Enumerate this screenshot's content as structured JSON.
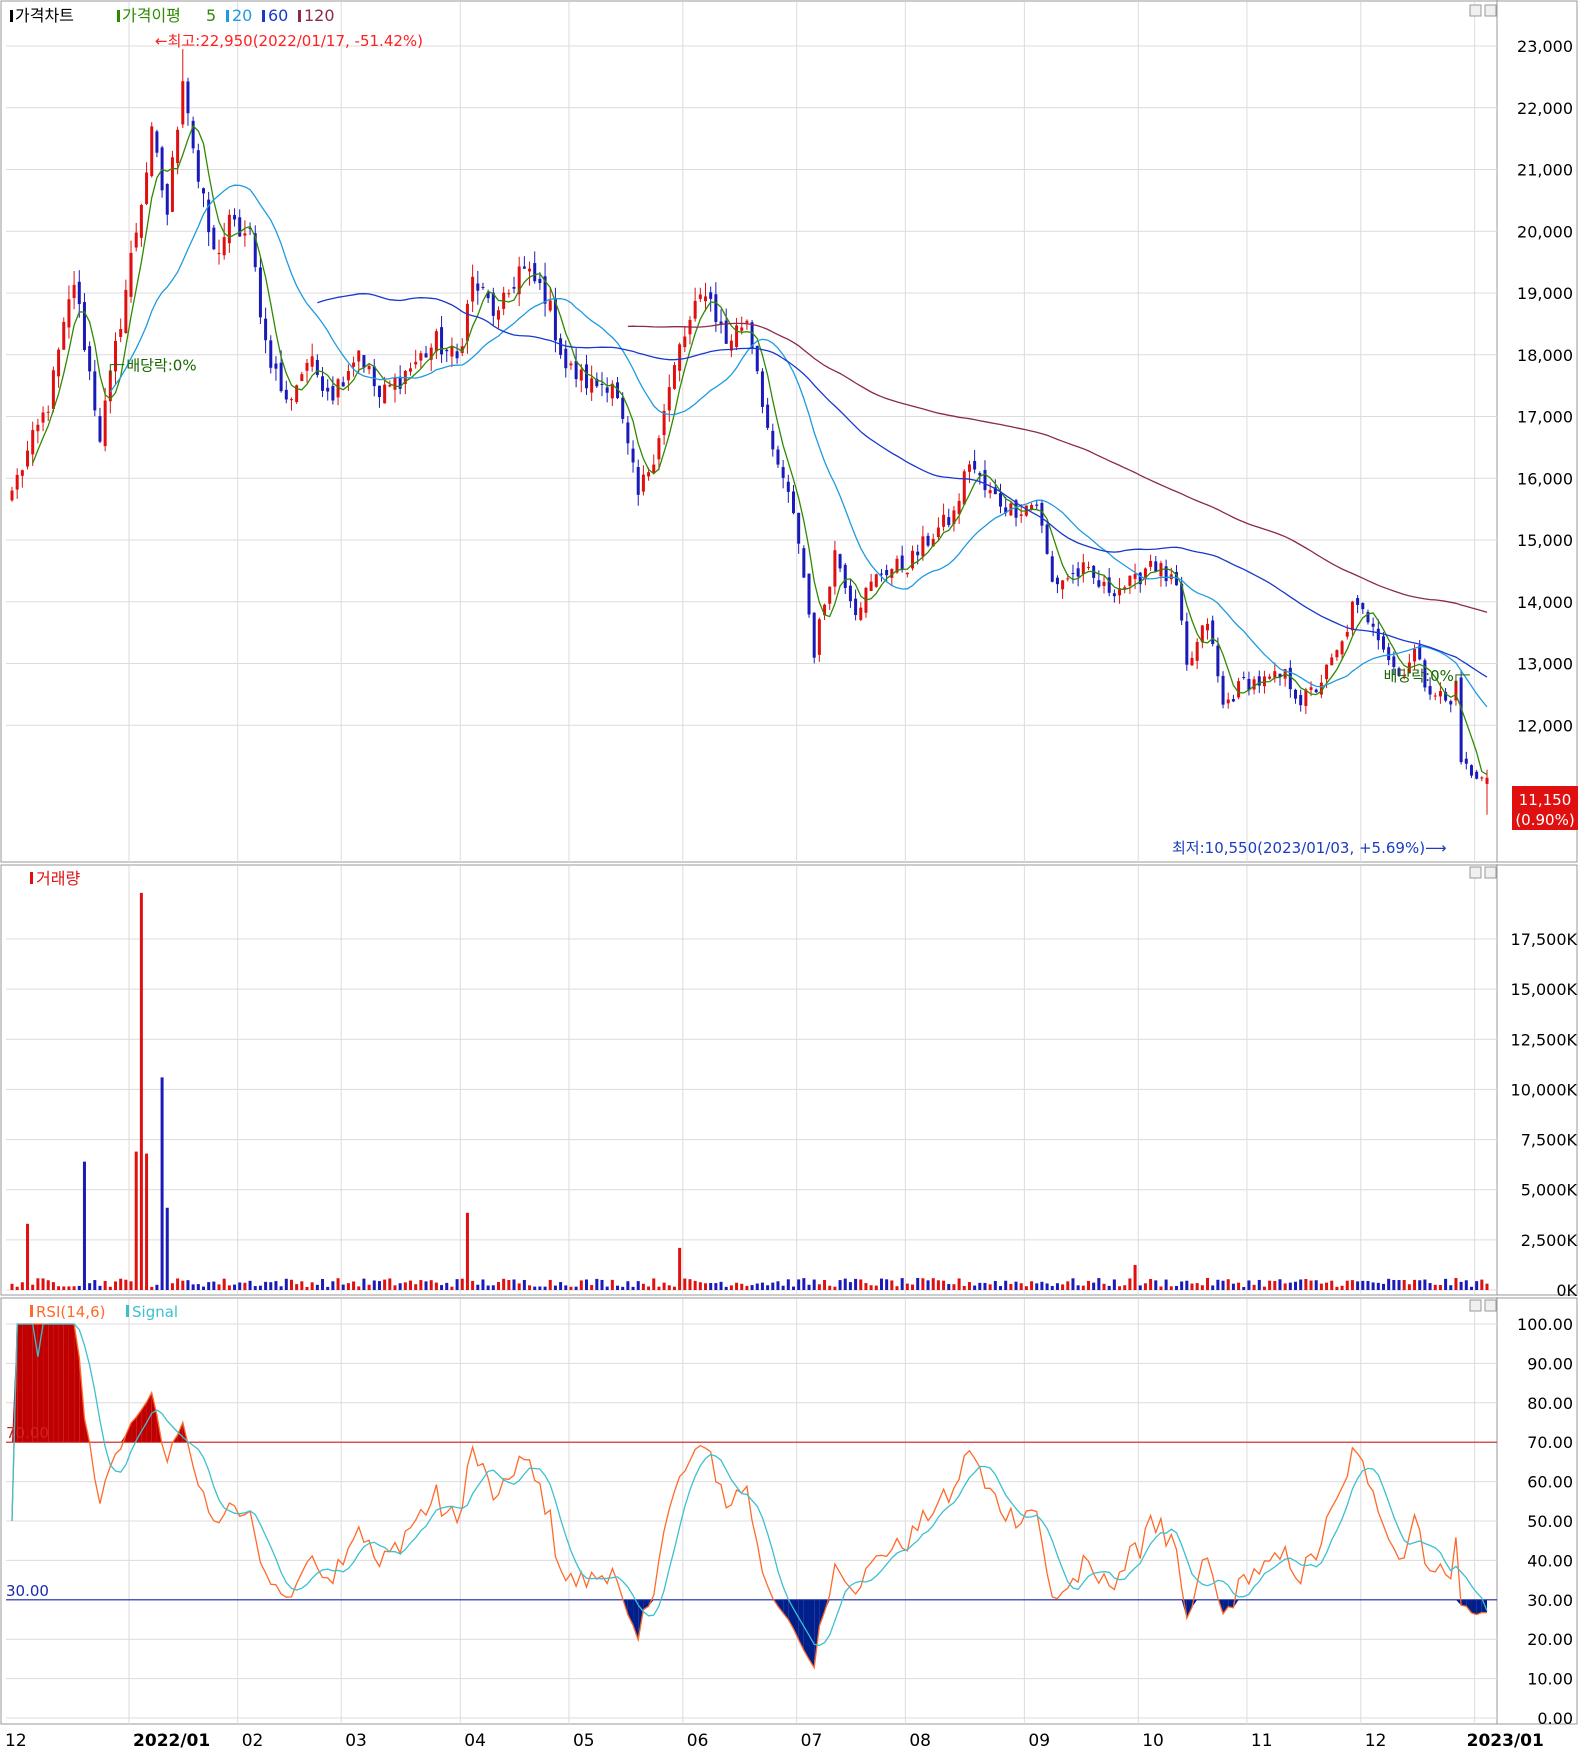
{
  "colors": {
    "up": "#e01010",
    "down": "#1a1ab8",
    "ma5": "#2e8b00",
    "ma20": "#1e9be0",
    "ma60": "#1838d0",
    "ma120": "#8b2a4a",
    "rsi": "#ff6a2a",
    "signal": "#3cc0d0",
    "grid": "#dcdcdc",
    "note": "#ff2020",
    "annotation": "#1a6600",
    "low_note": "#1a3cc0",
    "price_tag_bg": "#e01010"
  },
  "chart_data": [
    {
      "type": "candlestick",
      "panel": "price",
      "legend": {
        "main": "가격차트",
        "ma_title": "가격이평",
        "ma5": "5",
        "ma20": "20",
        "ma60": "60",
        "ma120": "120"
      },
      "y_ticks": [
        "23,000",
        "22,000",
        "21,000",
        "20,000",
        "19,000",
        "18,000",
        "17,000",
        "16,000",
        "15,000",
        "14,000",
        "13,000",
        "12,000"
      ],
      "ylim": [
        10300,
        23500
      ],
      "x_tick_labels": [
        "12",
        "2022/01",
        "02",
        "03",
        "04",
        "05",
        "06",
        "07",
        "08",
        "09",
        "10",
        "11",
        "12",
        "2023/01"
      ],
      "high_note": "←최고:22,950(2022/01/17, -51.42%)",
      "low_note": "최저:10,550(2023/01/03, +5.69%)⟶",
      "dividend_notes": [
        "배당락:0%",
        "배당락:0%"
      ],
      "last_price": "11,150",
      "last_change": "(0.90%)",
      "anchors": [
        [
          "2021-12-01",
          15800
        ],
        [
          "2021-12-10",
          17200
        ],
        [
          "2021-12-17",
          19200
        ],
        [
          "2021-12-24",
          16700
        ],
        [
          "2021-12-28",
          17600
        ],
        [
          "2022-01-07",
          21500
        ],
        [
          "2022-01-12",
          20300
        ],
        [
          "2022-01-14",
          21800
        ],
        [
          "2022-01-17",
          22600
        ],
        [
          "2022-01-20",
          20800
        ],
        [
          "2022-01-25",
          19600
        ],
        [
          "2022-01-28",
          20100
        ],
        [
          "2022-02-03",
          19900
        ],
        [
          "2022-02-08",
          18200
        ],
        [
          "2022-02-14",
          17200
        ],
        [
          "2022-02-18",
          17900
        ],
        [
          "2022-02-25",
          17400
        ],
        [
          "2022-03-04",
          18100
        ],
        [
          "2022-03-10",
          17300
        ],
        [
          "2022-03-18",
          17800
        ],
        [
          "2022-03-25",
          18200
        ],
        [
          "2022-03-31",
          17900
        ],
        [
          "2022-04-05",
          19200
        ],
        [
          "2022-04-12",
          18600
        ],
        [
          "2022-04-18",
          19400
        ],
        [
          "2022-04-25",
          19000
        ],
        [
          "2022-04-29",
          17800
        ],
        [
          "2022-05-06",
          17500
        ],
        [
          "2022-05-12",
          17600
        ],
        [
          "2022-05-19",
          15700
        ],
        [
          "2022-05-24",
          16400
        ],
        [
          "2022-05-31",
          18100
        ],
        [
          "2022-06-07",
          19100
        ],
        [
          "2022-06-13",
          18200
        ],
        [
          "2022-06-17",
          18600
        ],
        [
          "2022-06-21",
          17800
        ],
        [
          "2022-06-24",
          16300
        ],
        [
          "2022-06-28",
          16000
        ],
        [
          "2022-07-01",
          15000
        ],
        [
          "2022-07-06",
          13200
        ],
        [
          "2022-07-12",
          14800
        ],
        [
          "2022-07-18",
          13900
        ],
        [
          "2022-07-25",
          14500
        ],
        [
          "2022-08-01",
          14600
        ],
        [
          "2022-08-08",
          15100
        ],
        [
          "2022-08-12",
          15400
        ],
        [
          "2022-08-17",
          16300
        ],
        [
          "2022-08-22",
          15800
        ],
        [
          "2022-08-29",
          15500
        ],
        [
          "2022-09-05",
          15600
        ],
        [
          "2022-09-08",
          14300
        ],
        [
          "2022-09-16",
          14500
        ],
        [
          "2022-09-22",
          14200
        ],
        [
          "2022-09-30",
          14300
        ],
        [
          "2022-10-05",
          14700
        ],
        [
          "2022-10-12",
          14200
        ],
        [
          "2022-10-14",
          12900
        ],
        [
          "2022-10-20",
          13700
        ],
        [
          "2022-10-25",
          12300
        ],
        [
          "2022-10-31",
          12700
        ],
        [
          "2022-11-04",
          12700
        ],
        [
          "2022-11-10",
          12800
        ],
        [
          "2022-11-15",
          12400
        ],
        [
          "2022-11-18",
          12600
        ],
        [
          "2022-11-25",
          13300
        ],
        [
          "2022-11-29",
          13900
        ],
        [
          "2022-12-05",
          13700
        ],
        [
          "2022-12-08",
          13100
        ],
        [
          "2022-12-12",
          12800
        ],
        [
          "2022-12-15",
          13200
        ],
        [
          "2022-12-19",
          12700
        ],
        [
          "2022-12-23",
          12400
        ],
        [
          "2022-12-26",
          12300
        ],
        [
          "2022-12-27",
          12700
        ],
        [
          "2022-12-28",
          11500
        ],
        [
          "2022-12-29",
          11300
        ],
        [
          "2023-01-02",
          11100
        ],
        [
          "2023-01-04",
          11150
        ]
      ]
    },
    {
      "type": "bar",
      "panel": "volume",
      "legend": "거래량",
      "y_ticks": [
        "17,500K",
        "15,000K",
        "12,500K",
        "10,000K",
        "7,500K",
        "5,000K",
        "2,500K",
        "0K"
      ],
      "ylim": [
        0,
        20000
      ],
      "spikes": [
        [
          "2021-12-06",
          3300
        ],
        [
          "2021-12-21",
          6400
        ],
        [
          "2022-01-04",
          6900
        ],
        [
          "2022-01-05",
          19800
        ],
        [
          "2022-01-06",
          6800
        ],
        [
          "2022-01-11",
          10600
        ],
        [
          "2022-01-12",
          4100
        ],
        [
          "2022-04-04",
          3850
        ],
        [
          "2022-05-31",
          2100
        ],
        [
          "2022-09-30",
          1250
        ]
      ]
    },
    {
      "type": "line",
      "panel": "rsi",
      "legend": {
        "rsi": "RSI(14,6)",
        "signal": "Signal"
      },
      "y_ticks": [
        "100.00",
        "90.00",
        "80.00",
        "70.00",
        "60.00",
        "50.00",
        "40.00",
        "30.00",
        "20.00",
        "10.00",
        "0.00"
      ],
      "ylim": [
        0,
        100
      ],
      "levels": {
        "upper": 70,
        "lower": 30,
        "upper_label": "70.00",
        "lower_label": "30.00"
      }
    }
  ]
}
